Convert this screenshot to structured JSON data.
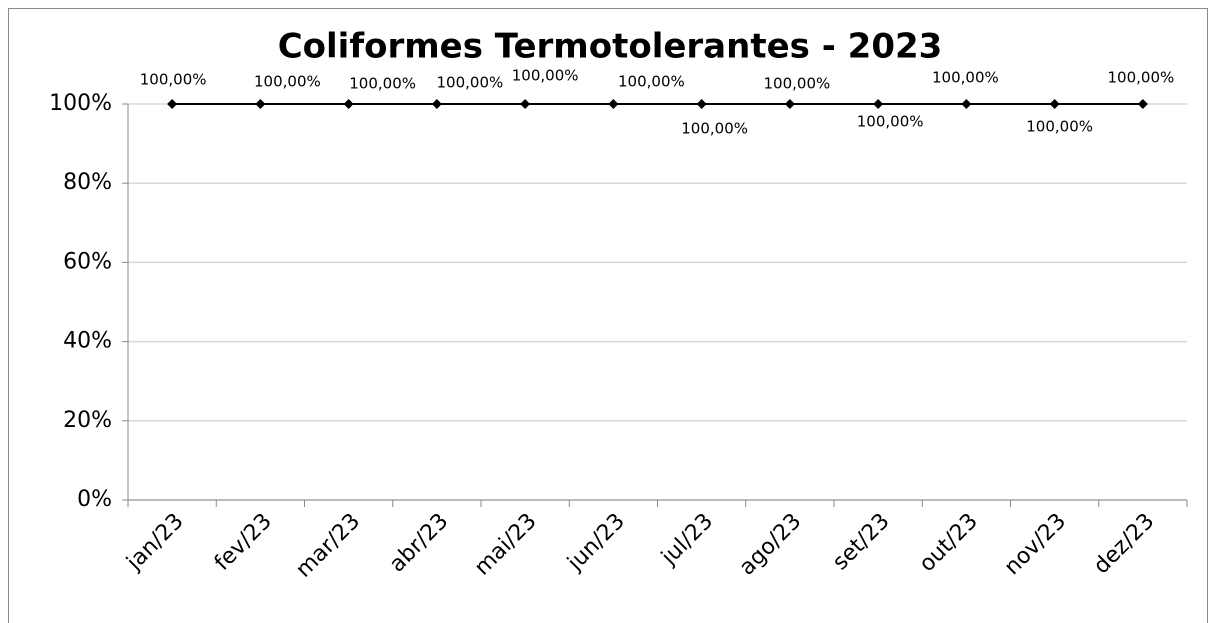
{
  "chart_data": {
    "type": "line",
    "title": "Coliformes Termotolerantes - 2023",
    "categories": [
      "jan/23",
      "fev/23",
      "mar/23",
      "abr/23",
      "mai/23",
      "jun/23",
      "jul/23",
      "ago/23",
      "set/23",
      "out/23",
      "nov/23",
      "dez/23"
    ],
    "series": [
      {
        "color": "#000000",
        "values": [
          100,
          100,
          100,
          100,
          100,
          100,
          100,
          100,
          100,
          100,
          100,
          100
        ],
        "value_labels": [
          "100,00%",
          "100,00%",
          "100,00%",
          "100,00%",
          "100,00%",
          "100,00%",
          "100,00%",
          "100,00%",
          "100,00%",
          "100,00%",
          "100,00%",
          "100,00%"
        ]
      }
    ],
    "ylim": [
      0,
      100
    ],
    "yticks": [
      {
        "value": 0,
        "label": "0%"
      },
      {
        "value": 20,
        "label": "20%"
      },
      {
        "value": 40,
        "label": "40%"
      },
      {
        "value": 60,
        "label": "60%"
      },
      {
        "value": 80,
        "label": "80%"
      },
      {
        "value": 100,
        "label": "100%"
      }
    ],
    "grid": true
  }
}
